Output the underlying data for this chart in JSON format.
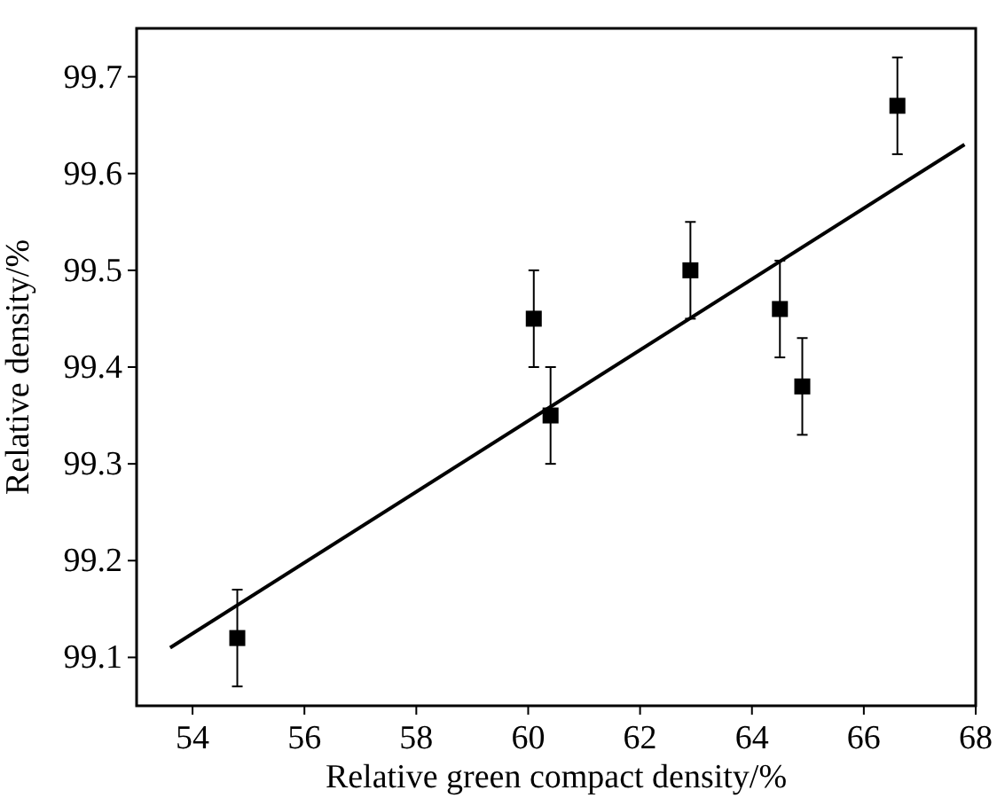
{
  "chart_data": {
    "type": "scatter",
    "xlabel": "Relative green compact density/%",
    "ylabel": "Relative density/%",
    "xlim": [
      53,
      68
    ],
    "ylim": [
      99.05,
      99.75
    ],
    "xticks": [
      54,
      56,
      58,
      60,
      62,
      64,
      66,
      68
    ],
    "yticks": [
      99.1,
      99.2,
      99.3,
      99.4,
      99.5,
      99.6,
      99.7
    ],
    "grid": false,
    "series": [
      {
        "color": "#000000",
        "marker": "square",
        "x": [
          54.8,
          60.1,
          60.4,
          62.9,
          64.5,
          64.9,
          66.6
        ],
        "values": [
          99.12,
          99.45,
          99.35,
          99.5,
          99.46,
          99.38,
          99.67
        ],
        "errors": [
          0.05,
          0.05,
          0.05,
          0.05,
          0.05,
          0.05,
          0.05
        ]
      },
      {
        "type": "line",
        "color": "#000000",
        "x": [
          53.6,
          67.8
        ],
        "values": [
          99.11,
          99.63
        ],
        "line_style": "solid",
        "marker": "none"
      }
    ]
  }
}
